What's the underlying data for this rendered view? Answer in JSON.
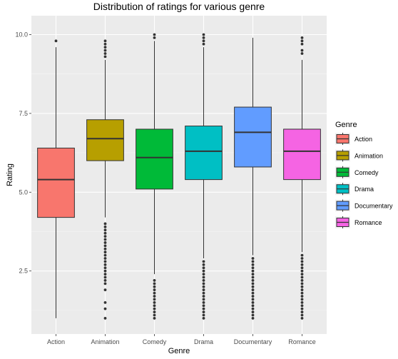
{
  "chart_data": {
    "type": "box",
    "title": "Distribution of ratings for various genre",
    "xlabel": "Genre",
    "ylabel": "Rating",
    "ylim": [
      0.5,
      10.6
    ],
    "yticks": [
      "2.5",
      "5.0",
      "7.5",
      "10.0"
    ],
    "legend_title": "Genre",
    "legend_position": "right",
    "grid": true,
    "categories": [
      "Action",
      "Animation",
      "Comedy",
      "Drama",
      "Documentary",
      "Romance"
    ],
    "colors": [
      "#f8766d",
      "#b79f00",
      "#00ba38",
      "#00bfc4",
      "#619cff",
      "#f564e3"
    ],
    "boxes": [
      {
        "name": "Action",
        "whisker_low": 1.0,
        "q1": 4.2,
        "median": 5.4,
        "q3": 6.4,
        "whisker_high": 9.6,
        "outliers": [
          9.8
        ]
      },
      {
        "name": "Animation",
        "whisker_low": 4.2,
        "q1": 6.0,
        "median": 6.7,
        "q3": 7.3,
        "whisker_high": 9.2,
        "outliers": [
          9.3,
          9.4,
          9.5,
          9.6,
          9.7,
          9.8,
          4.0,
          3.9,
          3.8,
          3.7,
          3.6,
          3.5,
          3.4,
          3.3,
          3.2,
          3.1,
          3.0,
          2.9,
          2.8,
          2.7,
          2.6,
          2.5,
          2.4,
          2.3,
          2.2,
          2.1,
          1.9,
          1.5,
          1.3,
          1.0
        ]
      },
      {
        "name": "Comedy",
        "whisker_low": 2.4,
        "q1": 5.1,
        "median": 6.1,
        "q3": 7.0,
        "whisker_high": 9.8,
        "outliers": [
          9.9,
          10.0,
          2.2,
          2.1,
          2.0,
          1.9,
          1.8,
          1.7,
          1.6,
          1.5,
          1.4,
          1.3,
          1.2,
          1.1,
          1.0
        ]
      },
      {
        "name": "Drama",
        "whisker_low": 2.9,
        "q1": 5.4,
        "median": 6.3,
        "q3": 7.1,
        "whisker_high": 9.6,
        "outliers": [
          9.7,
          9.8,
          9.9,
          10.0,
          2.8,
          2.7,
          2.6,
          2.5,
          2.4,
          2.3,
          2.2,
          2.1,
          2.0,
          1.9,
          1.8,
          1.7,
          1.6,
          1.5,
          1.4,
          1.3,
          1.2,
          1.1,
          1.0
        ]
      },
      {
        "name": "Documentary",
        "whisker_low": 3.0,
        "q1": 5.8,
        "median": 6.9,
        "q3": 7.7,
        "whisker_high": 9.9,
        "outliers": [
          2.9,
          2.8,
          2.7,
          2.6,
          2.5,
          2.4,
          2.3,
          2.2,
          2.1,
          2.0,
          1.9,
          1.8,
          1.7,
          1.6,
          1.5,
          1.4,
          1.3,
          1.2,
          1.1,
          1.0
        ]
      },
      {
        "name": "Romance",
        "whisker_low": 3.1,
        "q1": 5.4,
        "median": 6.3,
        "q3": 7.0,
        "whisker_high": 9.2,
        "outliers": [
          9.4,
          9.5,
          9.7,
          9.8,
          9.9,
          3.0,
          2.9,
          2.8,
          2.7,
          2.6,
          2.5,
          2.4,
          2.3,
          2.2,
          2.1,
          2.0,
          1.9,
          1.8,
          1.7,
          1.6,
          1.5,
          1.4,
          1.3,
          1.2,
          1.1,
          1.0
        ]
      }
    ]
  }
}
